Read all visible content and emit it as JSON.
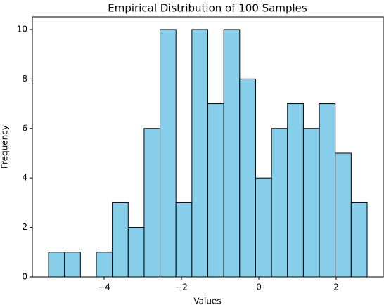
{
  "chart_data": {
    "type": "histogram",
    "title": "Empirical Distribution of 100 Samples",
    "x_label": "Values",
    "y_label": "Frequency",
    "bins": [
      -5.436,
      -5.024,
      -4.613,
      -4.201,
      -3.789,
      -3.377,
      -2.965,
      -2.554,
      -2.142,
      -1.73,
      -1.318,
      -0.906,
      -0.495,
      -0.083,
      0.329,
      0.741,
      1.153,
      1.564,
      1.976,
      2.388,
      2.8
    ],
    "values": [
      1,
      1,
      0,
      1,
      3,
      2,
      6,
      10,
      3,
      10,
      7,
      10,
      8,
      4,
      6,
      7,
      6,
      7,
      5,
      3
    ],
    "color": "#87ceeb",
    "edgecolor": "#000000",
    "xlim": [
      -5.855,
      3.218
    ],
    "ylim": [
      0,
      10.51
    ],
    "xticks": [
      {
        "value": -4,
        "label": "−4"
      },
      {
        "value": -2,
        "label": "−2"
      },
      0,
      2
    ],
    "yticks": [
      0,
      2,
      4,
      6,
      8,
      10
    ],
    "grid": false
  }
}
